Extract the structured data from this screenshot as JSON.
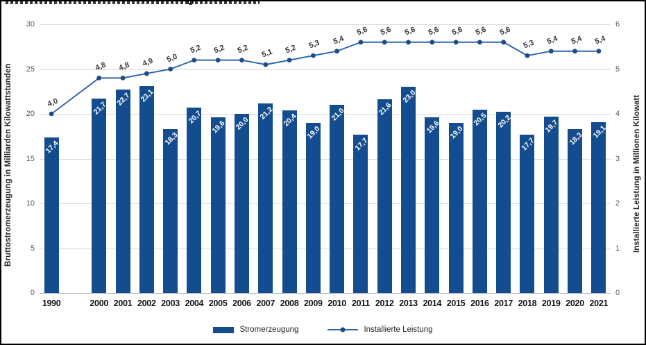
{
  "chart_data": {
    "type": "bar+line",
    "categories": [
      "1990",
      "2000",
      "2001",
      "2002",
      "2003",
      "2004",
      "2005",
      "2006",
      "2007",
      "2008",
      "2009",
      "2010",
      "2011",
      "2012",
      "2013",
      "2014",
      "2015",
      "2016",
      "2017",
      "2018",
      "2019",
      "2020",
      "2021"
    ],
    "series": [
      {
        "name": "Stromerzeugung",
        "chart": "bar",
        "axis": "left",
        "color": "#134d90",
        "values": [
          17.4,
          21.7,
          22.7,
          23.1,
          18.3,
          20.7,
          19.6,
          20.0,
          21.2,
          20.4,
          19.0,
          21.0,
          17.7,
          21.6,
          23.0,
          19.6,
          19.0,
          20.5,
          20.2,
          17.7,
          19.7,
          18.3,
          19.1
        ]
      },
      {
        "name": "Installierte Leistung",
        "chart": "line",
        "axis": "right",
        "color": "#2e68ae",
        "marker_color": "#1c4c88",
        "values": [
          4.0,
          4.8,
          4.8,
          4.9,
          5.0,
          5.2,
          5.2,
          5.2,
          5.1,
          5.2,
          5.3,
          5.4,
          5.6,
          5.6,
          5.6,
          5.6,
          5.6,
          5.6,
          5.6,
          5.3,
          5.4,
          5.4,
          5.4
        ]
      }
    ],
    "left_axis": {
      "title": "Bruttostromerzeugung in Milliarden Kilowattstunden",
      "ticks": [
        0,
        5,
        10,
        15,
        20,
        25,
        30
      ],
      "range": [
        0,
        30
      ]
    },
    "right_axis": {
      "title": "Installierte Leistung in Millionen Kilowatt",
      "ticks": [
        0,
        1,
        2,
        3,
        4,
        5,
        6
      ],
      "range": [
        0,
        6
      ]
    },
    "legend": {
      "position": "bottom",
      "items": [
        {
          "label": "Stromerzeugung",
          "swatch": "bar"
        },
        {
          "label": "Installierte Leistung",
          "swatch": "line"
        }
      ]
    },
    "grid": true,
    "decimal_separator": ","
  }
}
